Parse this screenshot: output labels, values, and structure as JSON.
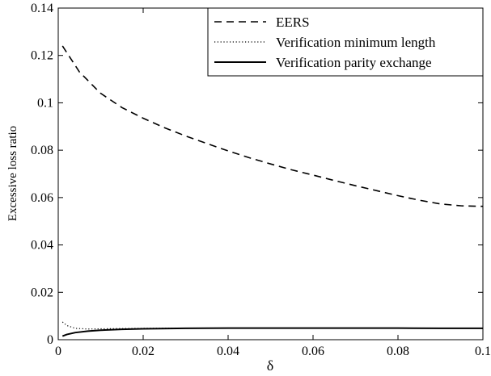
{
  "chart_data": {
    "type": "line",
    "xlabel": "δ",
    "ylabel": "Excessive loss ratio",
    "xlim": [
      0,
      0.1
    ],
    "ylim": [
      0,
      0.14
    ],
    "xticks": [
      0,
      0.02,
      0.04,
      0.06,
      0.08,
      0.1
    ],
    "xtick_labels": [
      "0",
      "0.02",
      "0.04",
      "0.06",
      "0.08",
      "0.1"
    ],
    "yticks": [
      0,
      0.02,
      0.04,
      0.06,
      0.08,
      0.1,
      0.12,
      0.14
    ],
    "ytick_labels": [
      "0",
      "0.02",
      "0.04",
      "0.06",
      "0.08",
      "0.1",
      "0.12",
      "0.14"
    ],
    "grid": false,
    "legend_position": "top-right",
    "series": [
      {
        "name": "EERS",
        "style": "dashed",
        "color": "#000000",
        "x": [
          0.001,
          0.005,
          0.01,
          0.015,
          0.02,
          0.025,
          0.03,
          0.035,
          0.04,
          0.045,
          0.05,
          0.055,
          0.06,
          0.065,
          0.07,
          0.075,
          0.08,
          0.085,
          0.09,
          0.095,
          0.1
        ],
        "y": [
          0.124,
          0.113,
          0.104,
          0.098,
          0.0935,
          0.0895,
          0.086,
          0.0828,
          0.0797,
          0.0768,
          0.0742,
          0.0717,
          0.0695,
          0.0672,
          0.065,
          0.0629,
          0.0608,
          0.0589,
          0.0573,
          0.0565,
          0.0563
        ]
      },
      {
        "name": "Verification minimum length",
        "style": "dotted",
        "color": "#000000",
        "x": [
          0.001,
          0.002,
          0.004,
          0.007,
          0.01,
          0.015,
          0.02,
          0.03,
          0.04,
          0.05,
          0.06,
          0.07,
          0.08,
          0.09,
          0.1
        ],
        "y": [
          0.0075,
          0.006,
          0.0048,
          0.0045,
          0.0046,
          0.0047,
          0.0048,
          0.0049,
          0.0049,
          0.0049,
          0.0049,
          0.0049,
          0.0049,
          0.0048,
          0.0048
        ]
      },
      {
        "name": "Verification parity exchange",
        "style": "solid",
        "color": "#000000",
        "x": [
          0.001,
          0.002,
          0.004,
          0.007,
          0.01,
          0.015,
          0.02,
          0.03,
          0.04,
          0.05,
          0.06,
          0.07,
          0.08,
          0.09,
          0.1
        ],
        "y": [
          0.0015,
          0.0022,
          0.003,
          0.0036,
          0.004,
          0.0044,
          0.0046,
          0.0048,
          0.0049,
          0.0049,
          0.0049,
          0.0049,
          0.0049,
          0.0048,
          0.0048
        ]
      }
    ]
  }
}
